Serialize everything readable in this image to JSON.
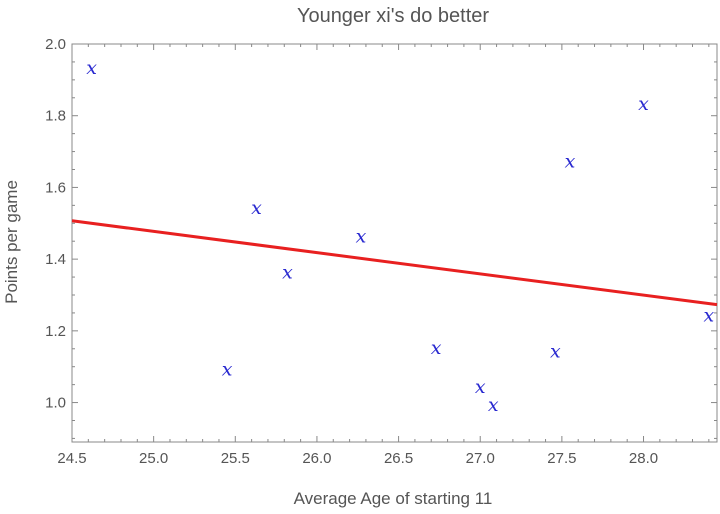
{
  "chart_data": {
    "type": "scatter",
    "title": "Younger xi's do better",
    "xlabel": "Average Age of starting 11",
    "ylabel": "Points per game",
    "xlim": [
      24.5,
      28.45
    ],
    "ylim": [
      0.89,
      2.0
    ],
    "x_ticks": [
      "24.5",
      "25.0",
      "25.5",
      "26.0",
      "26.5",
      "27.0",
      "27.5",
      "28.0"
    ],
    "y_ticks": [
      "1.0",
      "1.2",
      "1.4",
      "1.6",
      "1.8",
      "2.0"
    ],
    "marker_symbol": "x",
    "marker_color": "#2a2ad0",
    "line_color": "#e82020",
    "axis_color": "#888888",
    "grid": false,
    "legend": "none",
    "series": [
      {
        "points": [
          {
            "x": 24.62,
            "y": 1.93
          },
          {
            "x": 25.63,
            "y": 1.54
          },
          {
            "x": 25.82,
            "y": 1.36
          },
          {
            "x": 25.45,
            "y": 1.09
          },
          {
            "x": 26.27,
            "y": 1.46
          },
          {
            "x": 26.73,
            "y": 1.15
          },
          {
            "x": 27.0,
            "y": 1.04
          },
          {
            "x": 27.08,
            "y": 0.99
          },
          {
            "x": 27.46,
            "y": 1.14
          },
          {
            "x": 27.55,
            "y": 1.67
          },
          {
            "x": 28.0,
            "y": 1.83
          },
          {
            "x": 28.4,
            "y": 1.24
          }
        ]
      }
    ],
    "fit_line": {
      "from": {
        "x": 24.5,
        "y": 1.507
      },
      "to": {
        "x": 28.45,
        "y": 1.273
      }
    }
  }
}
